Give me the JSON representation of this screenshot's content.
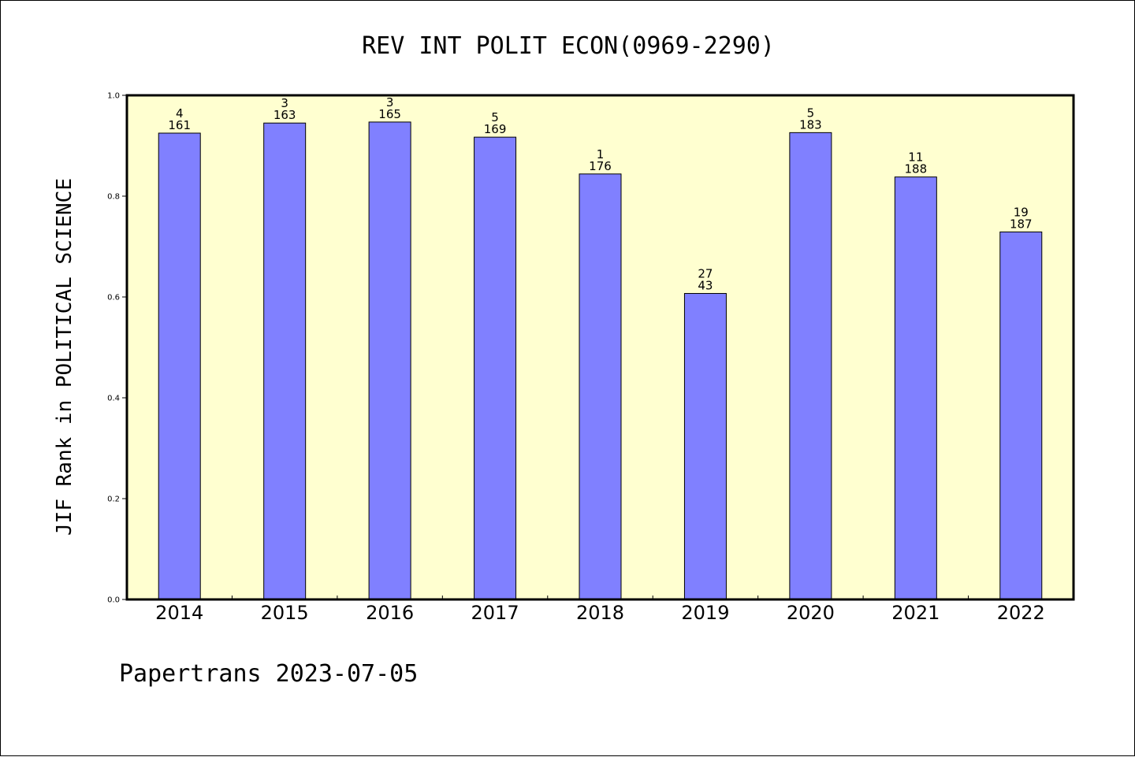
{
  "chart_data": {
    "type": "bar",
    "title": "REV INT POLIT ECON(0969-2290)",
    "ylabel": "JIF Rank in POLITICAL SCIENCE",
    "xlabel": "",
    "ylim": [
      0,
      1.0
    ],
    "yticks": [
      "0.0",
      "0.2",
      "0.4",
      "0.6",
      "0.8",
      "1.0"
    ],
    "categories": [
      "2014",
      "2015",
      "2016",
      "2017",
      "2018",
      "2019",
      "2020",
      "2021",
      "2022"
    ],
    "values": [
      0.925,
      0.945,
      0.947,
      0.917,
      0.844,
      0.607,
      0.926,
      0.838,
      0.729
    ],
    "rank": [
      "4",
      "3",
      "3",
      "5",
      "1",
      "27",
      "5",
      "11",
      "19"
    ],
    "total": [
      "161",
      "163",
      "165",
      "169",
      "176",
      "43",
      "183",
      "188",
      "187"
    ],
    "grid": false,
    "legend": "none",
    "colors": {
      "bar": "#8080ff",
      "plot_background": "#ffffd0",
      "edge": "#000000"
    }
  },
  "footer": "Papertrans 2023-07-05"
}
